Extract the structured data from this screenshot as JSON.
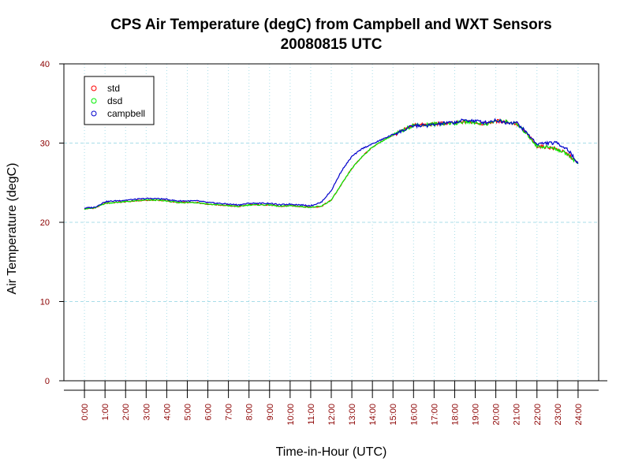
{
  "chart_data": {
    "type": "line",
    "title_line1": "CPS Air Temperature (degC) from Campbell and WXT Sensors",
    "title_line2": "20080815  UTC",
    "xlabel": "Time-in-Hour (UTC)",
    "ylabel": "Air Temperature (degC)",
    "xlim": [
      -1,
      25
    ],
    "ylim": [
      0,
      40
    ],
    "yticks": [
      0,
      10,
      20,
      30,
      40
    ],
    "xticks": [
      0,
      1,
      2,
      3,
      4,
      5,
      6,
      7,
      8,
      9,
      10,
      11,
      12,
      13,
      14,
      15,
      16,
      17,
      18,
      19,
      20,
      21,
      22,
      23,
      24
    ],
    "xtick_labels": [
      "0:00",
      "1:00",
      "2:00",
      "3:00",
      "4:00",
      "5:00",
      "6:00",
      "7:00",
      "8:00",
      "9:00",
      "10:00",
      "11:00",
      "12:00",
      "13:00",
      "14:00",
      "15:00",
      "16:00",
      "17:00",
      "18:00",
      "19:00",
      "20:00",
      "21:00",
      "22:00",
      "23:00",
      "24:00"
    ],
    "grid": true,
    "legend_position": "top-left",
    "series": [
      {
        "name": "std",
        "color": "#ff0000",
        "x": [
          0,
          0.5,
          1,
          1.5,
          2,
          2.5,
          3,
          3.5,
          4,
          4.5,
          5,
          5.5,
          6,
          6.5,
          7,
          7.5,
          8,
          8.5,
          9,
          9.5,
          10,
          10.5,
          11,
          11.5,
          12,
          12.5,
          13,
          13.5,
          14,
          14.5,
          15,
          15.5,
          16,
          16.5,
          17,
          17.5,
          18,
          18.5,
          19,
          19.5,
          20,
          20.5,
          21,
          21.5,
          22,
          22.5,
          23,
          23.5,
          24
        ],
        "values": [
          21.7,
          21.8,
          22.4,
          22.5,
          22.6,
          22.7,
          22.8,
          22.8,
          22.7,
          22.5,
          22.5,
          22.5,
          22.3,
          22.2,
          22.1,
          22.0,
          22.2,
          22.2,
          22.2,
          22.0,
          22.1,
          22.0,
          21.9,
          22.0,
          22.8,
          24.8,
          26.8,
          28.3,
          29.5,
          30.3,
          31.0,
          31.6,
          32.3,
          32.3,
          32.4,
          32.5,
          32.5,
          32.7,
          32.6,
          32.4,
          32.8,
          32.7,
          32.4,
          31.2,
          29.6,
          29.5,
          29.2,
          28.6,
          27.4
        ]
      },
      {
        "name": "dsd",
        "color": "#00ee00",
        "x": [
          0,
          0.5,
          1,
          1.5,
          2,
          2.5,
          3,
          3.5,
          4,
          4.5,
          5,
          5.5,
          6,
          6.5,
          7,
          7.5,
          8,
          8.5,
          9,
          9.5,
          10,
          10.5,
          11,
          11.5,
          12,
          12.5,
          13,
          13.5,
          14,
          14.5,
          15,
          15.5,
          16,
          16.5,
          17,
          17.5,
          18,
          18.5,
          19,
          19.5,
          20,
          20.5,
          21,
          21.5,
          22,
          22.5,
          23,
          23.5,
          24
        ],
        "values": [
          21.7,
          21.8,
          22.4,
          22.5,
          22.6,
          22.7,
          22.8,
          22.8,
          22.7,
          22.5,
          22.5,
          22.5,
          22.3,
          22.2,
          22.1,
          22.0,
          22.2,
          22.2,
          22.2,
          22.0,
          22.1,
          22.0,
          21.9,
          22.0,
          22.8,
          24.8,
          26.8,
          28.3,
          29.5,
          30.3,
          31.0,
          31.6,
          32.3,
          32.3,
          32.4,
          32.5,
          32.5,
          32.7,
          32.6,
          32.4,
          32.8,
          32.7,
          32.4,
          31.2,
          29.6,
          29.5,
          29.2,
          28.6,
          27.4
        ]
      },
      {
        "name": "campbell",
        "color": "#0000cc",
        "x": [
          0,
          0.5,
          1,
          1.5,
          2,
          2.5,
          3,
          3.5,
          4,
          4.5,
          5,
          5.5,
          6,
          6.5,
          7,
          7.5,
          8,
          8.5,
          9,
          9.5,
          10,
          10.5,
          11,
          11.5,
          12,
          12.5,
          13,
          13.5,
          14,
          14.5,
          15,
          15.5,
          16,
          16.5,
          17,
          17.5,
          18,
          18.5,
          19,
          19.5,
          20,
          20.5,
          21,
          21.5,
          22,
          22.5,
          23,
          23.5,
          24
        ],
        "values": [
          21.8,
          21.9,
          22.6,
          22.7,
          22.8,
          22.9,
          23.0,
          23.0,
          22.9,
          22.7,
          22.7,
          22.7,
          22.5,
          22.4,
          22.3,
          22.2,
          22.4,
          22.4,
          22.4,
          22.2,
          22.3,
          22.2,
          22.1,
          22.5,
          24.0,
          26.5,
          28.3,
          29.3,
          29.9,
          30.5,
          31.1,
          31.6,
          32.2,
          32.2,
          32.3,
          32.5,
          32.6,
          32.9,
          32.8,
          32.6,
          32.9,
          32.6,
          32.6,
          31.3,
          29.9,
          30.0,
          30.0,
          29.2,
          27.4
        ]
      }
    ]
  }
}
